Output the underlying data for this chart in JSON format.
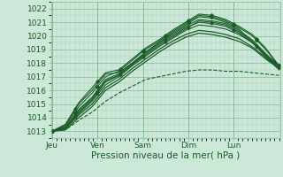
{
  "bg_color": "#cce8d8",
  "grid_color_major": "#88b898",
  "grid_color_minor": "#aacebb",
  "line_color": "#1a5c28",
  "xlabel": "Pression niveau de la mer( hPa )",
  "xlabel_fontsize": 7.5,
  "tick_label_color": "#1a5c28",
  "tick_fontsize": 6.5,
  "ylim": [
    1012.5,
    1022.5
  ],
  "yticks": [
    1013,
    1014,
    1015,
    1016,
    1017,
    1018,
    1019,
    1020,
    1021,
    1022
  ],
  "day_labels": [
    "Jeu",
    "Ven",
    "Sam",
    "Dim",
    "Lun"
  ],
  "day_positions": [
    0,
    40,
    80,
    120,
    160
  ],
  "total_points": 201,
  "series": [
    {
      "style": "-",
      "lw": 0.8,
      "marker": null,
      "data_idx": 0
    },
    {
      "style": "-",
      "lw": 0.8,
      "marker": "D",
      "data_idx": 1
    },
    {
      "style": "-",
      "lw": 0.8,
      "marker": null,
      "data_idx": 2
    },
    {
      "style": "-",
      "lw": 0.8,
      "marker": "^",
      "data_idx": 3
    },
    {
      "style": "-",
      "lw": 0.8,
      "marker": null,
      "data_idx": 4
    },
    {
      "style": "--",
      "lw": 0.8,
      "marker": null,
      "data_idx": 5
    },
    {
      "style": "-",
      "lw": 0.8,
      "marker": "o",
      "data_idx": 6
    },
    {
      "style": "-",
      "lw": 0.9,
      "marker": null,
      "data_idx": 7
    },
    {
      "style": "-",
      "lw": 0.9,
      "marker": null,
      "data_idx": 8
    },
    {
      "style": "-",
      "lw": 0.8,
      "marker": "s",
      "data_idx": 9
    }
  ]
}
